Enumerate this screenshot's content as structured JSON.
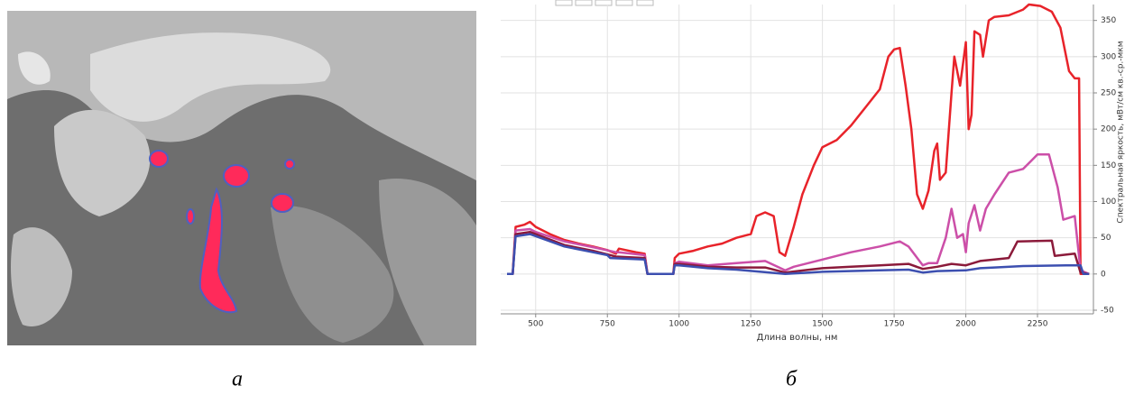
{
  "captions": [
    "а",
    "б"
  ],
  "chart_data": {
    "type": "line",
    "xlabel": "Длина волны, нм",
    "ylabel": "Спектральная яркость, мВт/см кв.-ср.-мкм",
    "xlim": [
      378,
      2445
    ],
    "ylim": [
      -55,
      372
    ],
    "xticks": [
      500,
      750,
      1000,
      1250,
      1500,
      1750,
      2000,
      2250
    ],
    "yticks": [
      -50,
      0,
      50,
      100,
      150,
      200,
      250,
      300,
      350
    ],
    "grid": true,
    "series": [
      {
        "color": "#e8232a",
        "x": [
          400,
          420,
          430,
          460,
          480,
          500,
          550,
          600,
          650,
          700,
          750,
          780,
          790,
          850,
          880,
          890,
          980,
          985,
          1000,
          1050,
          1100,
          1150,
          1200,
          1250,
          1270,
          1300,
          1330,
          1350,
          1370,
          1400,
          1430,
          1470,
          1500,
          1550,
          1600,
          1650,
          1700,
          1730,
          1750,
          1770,
          1790,
          1810,
          1830,
          1850,
          1870,
          1890,
          1900,
          1910,
          1930,
          1950,
          1960,
          1980,
          2000,
          2010,
          2020,
          2030,
          2050,
          2060,
          2080,
          2100,
          2150,
          2200,
          2220,
          2260,
          2300,
          2330,
          2360,
          2380,
          2395,
          2400,
          2430
        ],
        "values": [
          0,
          0,
          65,
          68,
          72,
          65,
          55,
          47,
          42,
          38,
          33,
          28,
          35,
          30,
          28,
          0,
          0,
          22,
          28,
          32,
          38,
          42,
          50,
          55,
          80,
          85,
          80,
          30,
          25,
          65,
          110,
          150,
          175,
          185,
          205,
          230,
          255,
          300,
          310,
          312,
          260,
          200,
          110,
          90,
          115,
          170,
          180,
          130,
          140,
          250,
          300,
          260,
          320,
          200,
          220,
          335,
          330,
          300,
          350,
          355,
          357,
          365,
          372,
          370,
          362,
          340,
          280,
          270,
          270,
          0,
          0
        ]
      },
      {
        "color": "#cc4fa8",
        "x": [
          400,
          420,
          430,
          480,
          500,
          600,
          700,
          780,
          790,
          880,
          890,
          980,
          985,
          1000,
          1100,
          1200,
          1300,
          1370,
          1400,
          1500,
          1600,
          1700,
          1770,
          1800,
          1850,
          1870,
          1900,
          1930,
          1950,
          1970,
          1990,
          2000,
          2010,
          2030,
          2050,
          2070,
          2100,
          2150,
          2200,
          2250,
          2290,
          2320,
          2340,
          2380,
          2400,
          2430
        ],
        "values": [
          0,
          0,
          60,
          62,
          58,
          45,
          37,
          30,
          30,
          26,
          0,
          0,
          15,
          17,
          12,
          15,
          18,
          5,
          10,
          20,
          30,
          38,
          45,
          38,
          12,
          15,
          15,
          50,
          90,
          50,
          55,
          30,
          70,
          95,
          60,
          90,
          110,
          140,
          145,
          165,
          165,
          120,
          75,
          80,
          5,
          0
        ]
      },
      {
        "color": "#8b1a3a",
        "x": [
          400,
          420,
          430,
          480,
          600,
          700,
          780,
          880,
          890,
          980,
          985,
          1000,
          1100,
          1200,
          1300,
          1370,
          1500,
          1600,
          1700,
          1800,
          1850,
          1900,
          1950,
          2000,
          2050,
          2100,
          2150,
          2180,
          2300,
          2310,
          2380,
          2400,
          2430
        ],
        "values": [
          0,
          0,
          55,
          58,
          40,
          32,
          24,
          22,
          0,
          0,
          14,
          14,
          10,
          9,
          9,
          2,
          8,
          10,
          12,
          14,
          7,
          10,
          14,
          12,
          18,
          20,
          22,
          45,
          46,
          25,
          28,
          2,
          0
        ]
      },
      {
        "color": "#3c4fb0",
        "x": [
          400,
          420,
          430,
          480,
          600,
          700,
          750,
          760,
          880,
          890,
          980,
          985,
          1000,
          1100,
          1200,
          1370,
          1500,
          1700,
          1800,
          1850,
          1900,
          2000,
          2050,
          2100,
          2200,
          2350,
          2400,
          2410,
          2430
        ],
        "values": [
          0,
          0,
          52,
          55,
          38,
          30,
          26,
          22,
          20,
          0,
          0,
          12,
          12,
          8,
          6,
          0,
          3,
          5,
          6,
          2,
          4,
          5,
          8,
          9,
          11,
          12,
          12,
          0,
          0
        ]
      }
    ]
  }
}
